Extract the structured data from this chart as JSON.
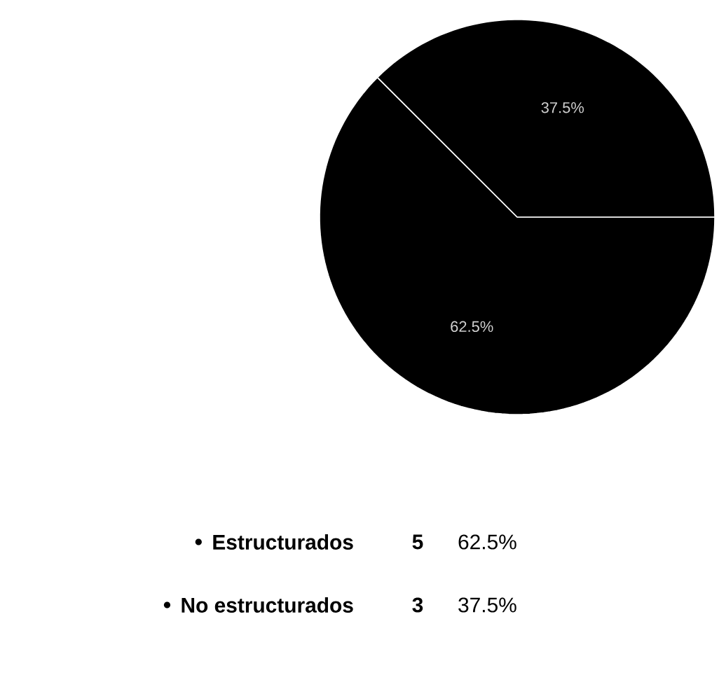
{
  "chart_data": {
    "type": "pie",
    "categories": [
      "Estructurados",
      "No estructurados"
    ],
    "values": [
      62.5,
      37.5
    ],
    "value_labels": [
      "62.5%",
      "37.5%"
    ],
    "colors": [
      "#000000",
      "#000000"
    ],
    "annotations": [
      "5",
      "3"
    ],
    "legend": "bottom"
  }
}
